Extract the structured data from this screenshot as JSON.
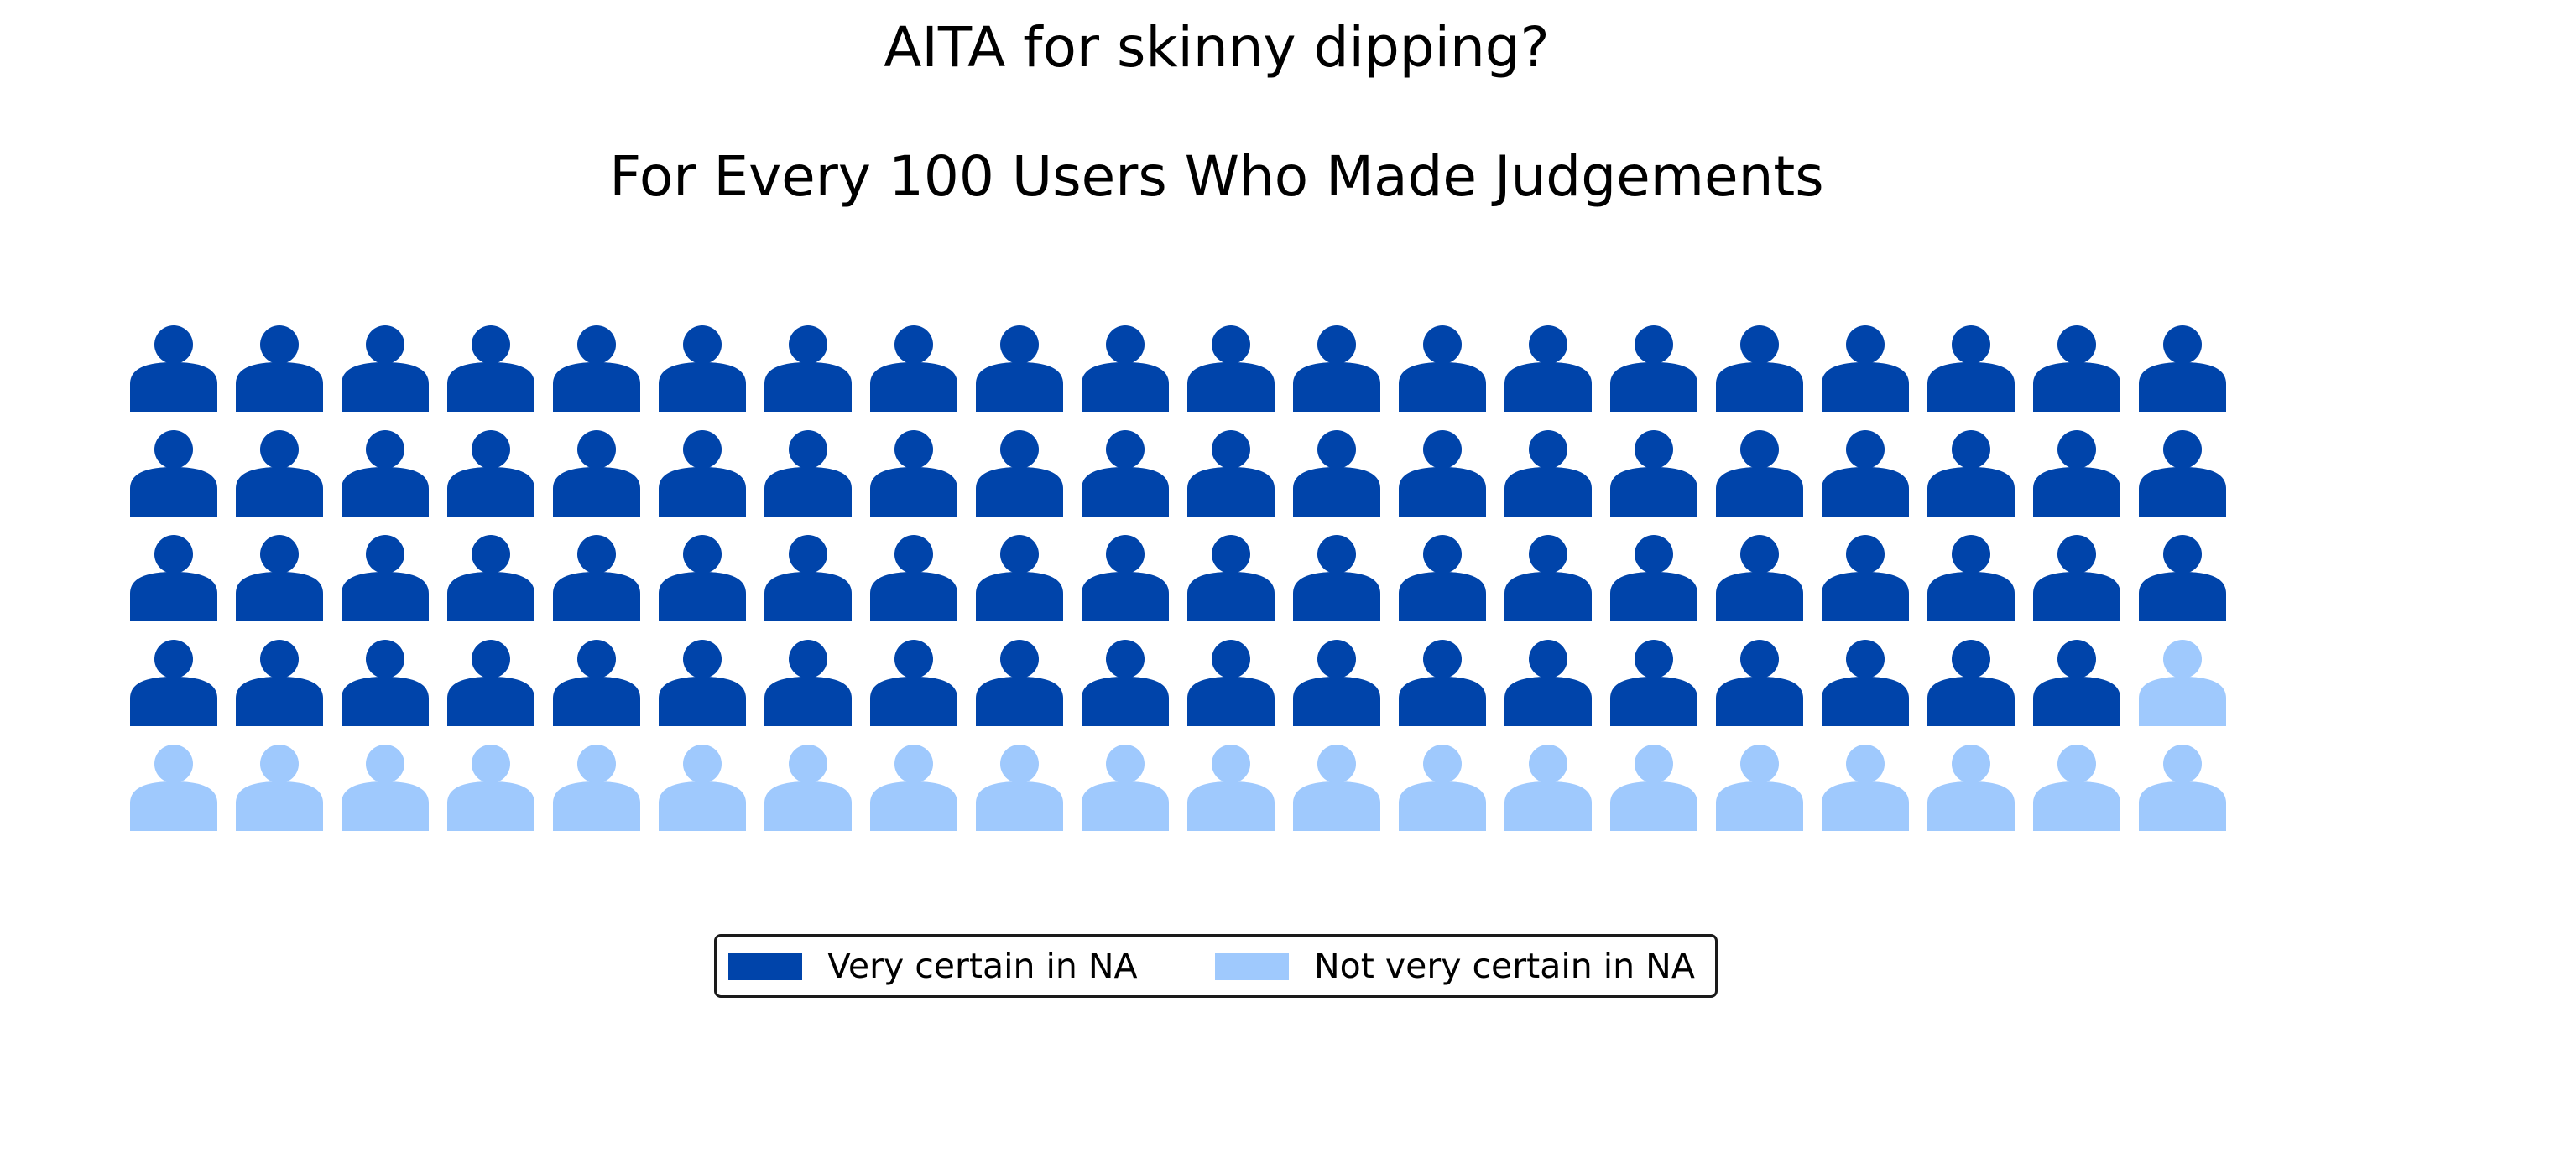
{
  "chart_data": {
    "type": "waffle",
    "title": "AITA for skinny dipping?",
    "subtitle": "For Every 100 Users Who Made Judgements",
    "grid": {
      "rows": 5,
      "columns": 20
    },
    "total": 100,
    "series": [
      {
        "name": "Very certain in NA",
        "value": 79,
        "color": "#0044aa"
      },
      {
        "name": "Not very certain in NA",
        "value": 21,
        "color": "#9fc9fd"
      }
    ],
    "icon": "person-icon",
    "legend_position": "bottom-center"
  }
}
